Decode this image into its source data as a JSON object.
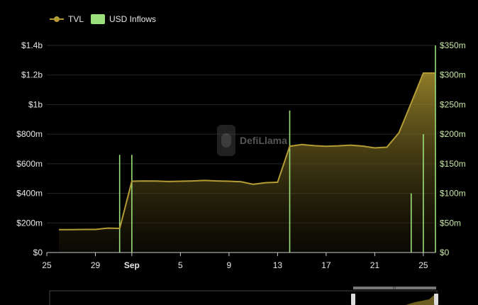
{
  "legend": {
    "tvl_label": "TVL",
    "usd_label": "USD Inflows"
  },
  "watermark": {
    "text": "DefiLlama"
  },
  "colors": {
    "tvl": "#b39c34",
    "usd": "#9be07a",
    "grid": "#262626",
    "text": "#e6e6e6",
    "usd_axis": "#c6e6a4"
  },
  "chart_data": {
    "type": "line",
    "x_ticks": [
      "25",
      "29",
      "Sep",
      "5",
      "9",
      "13",
      "17",
      "21",
      "25"
    ],
    "x_tick_days": [
      25,
      29,
      32,
      36,
      40,
      44,
      48,
      52,
      56
    ],
    "x_range_days": [
      25,
      57
    ],
    "y_left_ticks": [
      "$0",
      "$200m",
      "$400m",
      "$600m",
      "$800m",
      "$1b",
      "$1.2b",
      "$1.4b"
    ],
    "y_left_range": [
      0,
      1400
    ],
    "y_right_ticks": [
      "$0",
      "$50m",
      "$100m",
      "$150m",
      "$200m",
      "$250m",
      "$300m",
      "$350m"
    ],
    "y_right_range": [
      0,
      350
    ],
    "series": [
      {
        "name": "TVL",
        "x_days": [
          26,
          27,
          28,
          29,
          30,
          31,
          32,
          33,
          34,
          35,
          36,
          37,
          38,
          39,
          40,
          41,
          42,
          43,
          44,
          45,
          46,
          47,
          48,
          49,
          50,
          51,
          52,
          53,
          54,
          55,
          56,
          57
        ],
        "values": [
          155,
          155,
          156,
          156,
          165,
          163,
          482,
          484,
          483,
          480,
          482,
          484,
          487,
          484,
          482,
          478,
          461,
          472,
          475,
          718,
          730,
          722,
          718,
          721,
          726,
          719,
          707,
          712,
          810,
          1010,
          1213,
          1213
        ]
      },
      {
        "name": "USD Inflows",
        "x_days": [
          31,
          32,
          45,
          55,
          56,
          57
        ],
        "values": [
          165,
          165,
          240,
          100,
          200,
          350
        ]
      }
    ]
  },
  "navigator": {
    "handle_label": "III"
  }
}
